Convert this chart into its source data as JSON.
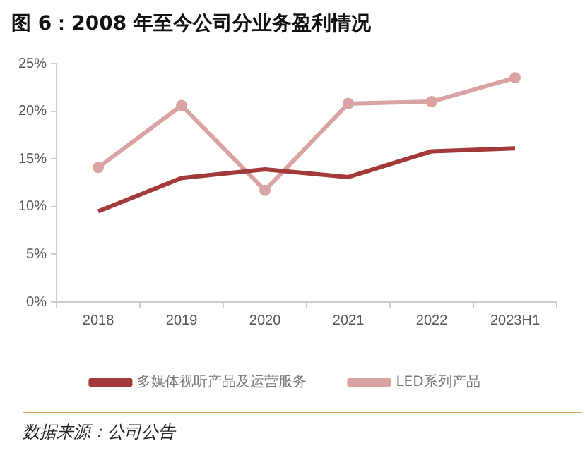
{
  "chart_data": {
    "type": "line",
    "title": "图 6：2008 年至今公司分业务盈利情况",
    "categories": [
      "2018",
      "2019",
      "2020",
      "2021",
      "2022",
      "2023H1"
    ],
    "series": [
      {
        "name": "多媒体视听产品及运营服务",
        "color": "#a33a3a",
        "marker": "none",
        "values": [
          9.5,
          13.0,
          13.9,
          13.1,
          15.8,
          16.1
        ]
      },
      {
        "name": "LED系列产品",
        "color": "#d9a3a3",
        "marker": "circle",
        "values": [
          14.1,
          20.6,
          11.7,
          20.8,
          21.0,
          23.5
        ]
      }
    ],
    "ylim": [
      0,
      25
    ],
    "yticks": [
      {
        "value": 0,
        "label": "0%"
      },
      {
        "value": 5,
        "label": "5%"
      },
      {
        "value": 10,
        "label": "10%"
      },
      {
        "value": 15,
        "label": "15%"
      },
      {
        "value": 20,
        "label": "20%"
      },
      {
        "value": 25,
        "label": "25%"
      }
    ],
    "grid": false,
    "legend": "bottom",
    "line_style": "solid",
    "annotations": [
      "数据来源：公司公告"
    ]
  }
}
